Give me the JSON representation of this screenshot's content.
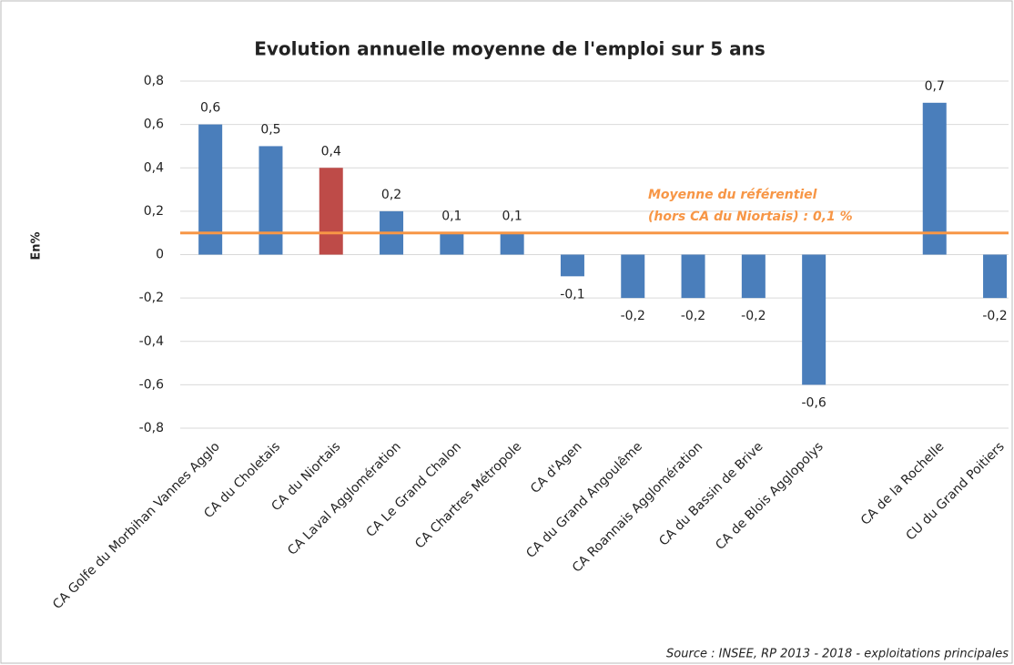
{
  "chart_data": {
    "type": "bar",
    "title": "Evolution annuelle moyenne de l'emploi sur 5 ans",
    "y_label": "En%",
    "categories": [
      "CA Golfe du Morbihan Vannes Agglo",
      "CA du Choletais",
      "CA du Niortais",
      "CA Laval Agglomération",
      "CA Le Grand Chalon",
      "CA Chartres Métropole",
      "CA d'Agen",
      "CA du Grand Angoulême",
      "CA Roannais Agglomération",
      "CA du Bassin de Brive",
      "CA de Blois Agglopolys",
      null,
      "CA de la Rochelle",
      "CU du Grand Poitiers"
    ],
    "values": [
      0.6,
      0.5,
      0.4,
      0.2,
      0.1,
      0.1,
      -0.1,
      -0.2,
      -0.2,
      -0.2,
      -0.6,
      null,
      0.7,
      -0.2
    ],
    "value_labels": [
      "0,6",
      "0,5",
      "0,4",
      "0,2",
      "0,1",
      "0,1",
      "-0,1",
      "-0,2",
      "-0,2",
      "-0,2",
      "-0,6",
      null,
      "0,7",
      "-0,2"
    ],
    "colors": [
      "#4a7ebb",
      "#4a7ebb",
      "#be4b48",
      "#4a7ebb",
      "#4a7ebb",
      "#4a7ebb",
      "#4a7ebb",
      "#4a7ebb",
      "#4a7ebb",
      "#4a7ebb",
      "#4a7ebb",
      null,
      "#4a7ebb",
      "#4a7ebb"
    ],
    "ylim": [
      -0.8,
      0.8
    ],
    "yticks": [
      {
        "value": -0.8,
        "label": "-0,8"
      },
      {
        "value": -0.6,
        "label": "-0,6"
      },
      {
        "value": -0.4,
        "label": "-0,4"
      },
      {
        "value": -0.2,
        "label": "-0,2"
      },
      0,
      {
        "value": 0.2,
        "label": "0,2"
      },
      {
        "value": 0.4,
        "label": "0,4"
      },
      {
        "value": 0.6,
        "label": "0,6"
      },
      {
        "value": 0.8,
        "label": "0,8"
      }
    ],
    "grid": true,
    "reference_line": {
      "value": 0.1,
      "color": "#f79646",
      "labels": [
        "Moyenne du référentiel",
        "(hors CA du Niortais) : 0,1 %"
      ]
    },
    "source": "Source : INSEE, RP 2013 - 2018 - exploitations principales"
  }
}
